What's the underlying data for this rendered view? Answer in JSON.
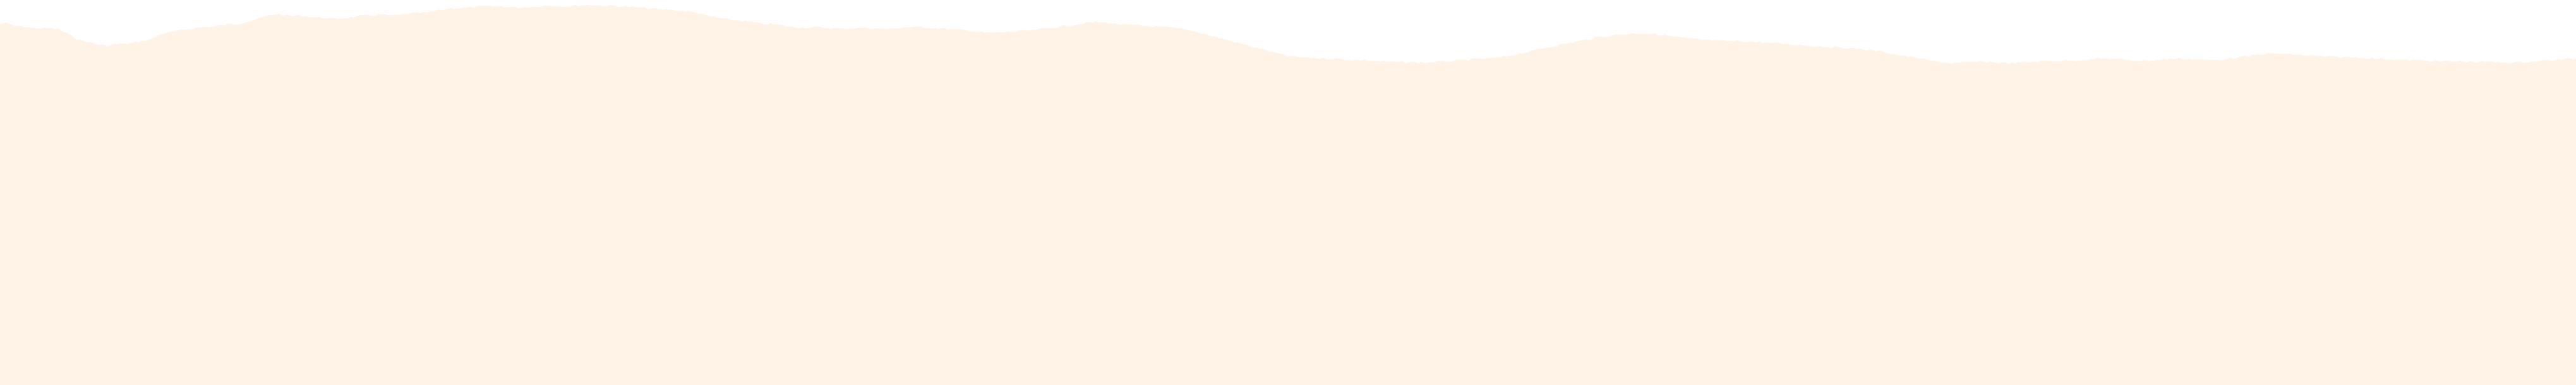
{
  "colors": {
    "background": "#ffffff",
    "fill": "#fef3e6"
  }
}
